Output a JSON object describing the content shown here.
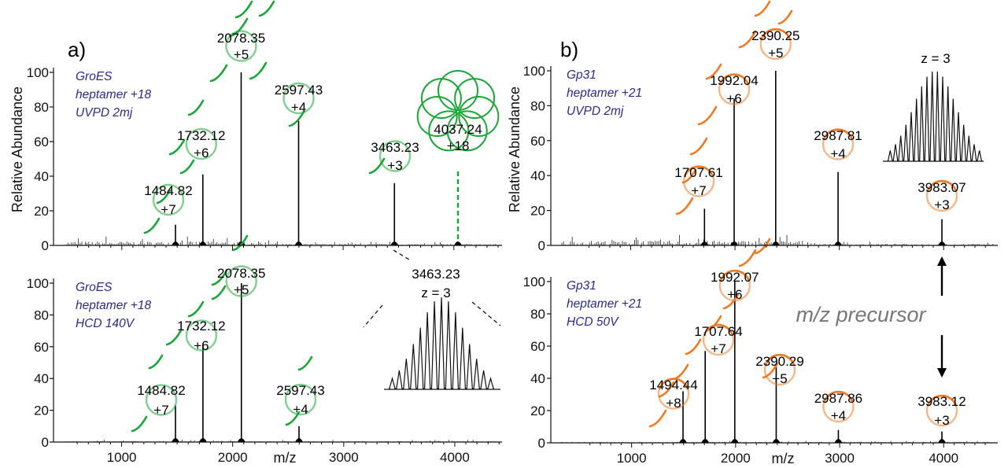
{
  "colors": {
    "green": "#1aa637",
    "orange": "#ef7a24",
    "text": "#000000",
    "condition_text": "#2b2b8c"
  },
  "annotation": {
    "precursor": "m/z precursor"
  },
  "chart_data": [
    {
      "id": "a-top",
      "panel": "a)",
      "type": "line",
      "ylabel": "Relative Abundance",
      "xlim": [
        500,
        4400
      ],
      "ylim": [
        0,
        100
      ],
      "x_ticks": [],
      "y_ticks": [
        0,
        20,
        40,
        60,
        80,
        100
      ],
      "condition": [
        "GroES",
        "heptamer +18",
        "UVPD 2mj"
      ],
      "color": "green",
      "peaks": [
        {
          "mz": "1484.82",
          "z": "+7",
          "x": 1484.82,
          "y": 12
        },
        {
          "mz": "1732.12",
          "z": "+6",
          "x": 1732.12,
          "y": 41
        },
        {
          "mz": "2078.35",
          "z": "+5",
          "x": 2078.35,
          "y": 100
        },
        {
          "mz": "2597.43",
          "z": "+4",
          "x": 2597.43,
          "y": 72
        },
        {
          "mz": "3463.23",
          "z": "+3",
          "x": 3463.23,
          "y": 36
        },
        {
          "mz": "4037.24",
          "z": "+18",
          "x": 4037.24,
          "y": 1
        }
      ]
    },
    {
      "id": "a-bottom",
      "type": "line",
      "xlabel": "m/z",
      "xlim": [
        500,
        4400
      ],
      "ylim": [
        0,
        100
      ],
      "x_ticks": [
        1000,
        2000,
        3000,
        4000
      ],
      "y_ticks": [
        0,
        20,
        40,
        60,
        80,
        100
      ],
      "condition": [
        "GroES",
        "heptamer +18",
        "HCD 140V"
      ],
      "color": "green",
      "peaks": [
        {
          "mz": "1484.82",
          "z": "+7",
          "x": 1484.82,
          "y": 23
        },
        {
          "mz": "1732.12",
          "z": "+6",
          "x": 1732.12,
          "y": 62
        },
        {
          "mz": "2078.35",
          "z": "+5",
          "x": 2078.35,
          "y": 100
        },
        {
          "mz": "2597.43",
          "z": "+4",
          "x": 2597.43,
          "y": 10
        }
      ],
      "inset": {
        "mz": "3463.23",
        "z": "z = 3"
      }
    },
    {
      "id": "b-top",
      "panel": "b)",
      "type": "line",
      "ylabel": "Relative Abundance",
      "xlim": [
        400,
        4500
      ],
      "ylim": [
        0,
        100
      ],
      "x_ticks": [],
      "y_ticks": [
        0,
        20,
        40,
        60,
        80,
        100
      ],
      "condition": [
        "Gp31",
        "heptamer +21",
        "UVPD 2mj"
      ],
      "color": "orange",
      "peaks": [
        {
          "mz": "1707.61",
          "z": "+7",
          "x": 1707.61,
          "y": 21
        },
        {
          "mz": "1992.04",
          "z": "+6",
          "x": 1992.04,
          "y": 84
        },
        {
          "mz": "2390.25",
          "z": "+5",
          "x": 2390.25,
          "y": 100
        },
        {
          "mz": "2987.81",
          "z": "+4",
          "x": 2987.81,
          "y": 42
        },
        {
          "mz": "3983.07",
          "z": "+3",
          "x": 3983.07,
          "y": 15
        }
      ],
      "inset": {
        "z": "z = 3"
      }
    },
    {
      "id": "b-bottom",
      "type": "line",
      "xlabel": "m/z",
      "xlim": [
        400,
        4500
      ],
      "ylim": [
        0,
        100
      ],
      "x_ticks": [
        1000,
        2000,
        3000,
        4000
      ],
      "y_ticks": [
        0,
        20,
        40,
        60,
        80,
        100
      ],
      "condition": [
        "Gp31",
        "heptamer +21",
        "HCD 50V"
      ],
      "color": "orange",
      "peaks": [
        {
          "mz": "1494.44",
          "z": "+8",
          "x": 1494.44,
          "y": 32
        },
        {
          "mz": "1707.64",
          "z": "+7",
          "x": 1707.64,
          "y": 57
        },
        {
          "mz": "1992.07",
          "z": "+6",
          "x": 1992.07,
          "y": 100
        },
        {
          "mz": "2390.29",
          "z": "+5",
          "x": 2390.29,
          "y": 47
        },
        {
          "mz": "2987.86",
          "z": "+4",
          "x": 2987.86,
          "y": 8
        },
        {
          "mz": "3983.12",
          "z": "+3",
          "x": 3983.12,
          "y": 7
        }
      ]
    }
  ]
}
